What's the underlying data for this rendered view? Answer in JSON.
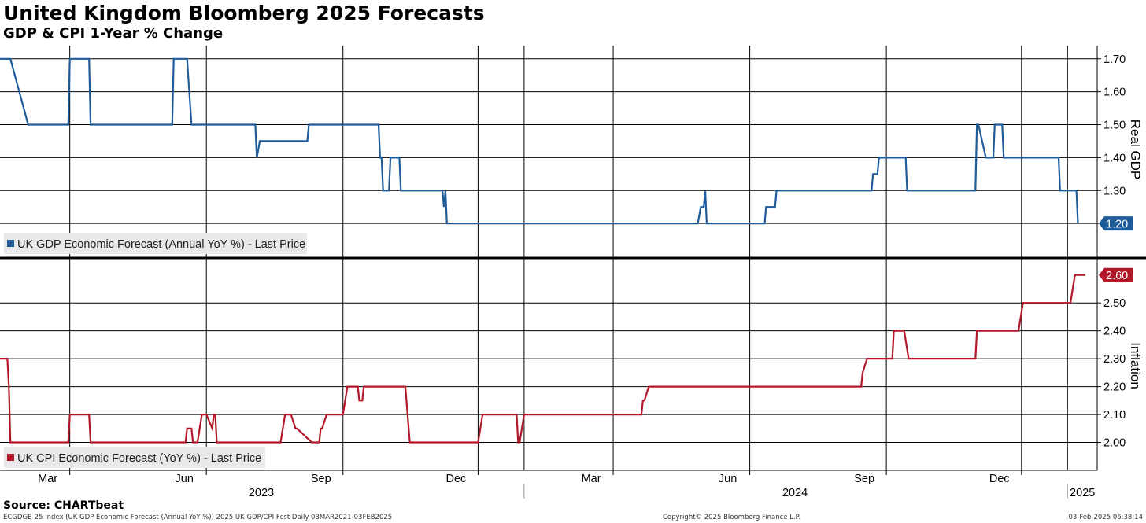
{
  "header": {
    "title": "United Kingdom Bloomberg 2025 Forecasts",
    "subtitle": "GDP & CPI 1-Year % Change"
  },
  "footer": {
    "source": "Source: CHARTbeat",
    "left_text": "ECGDGB 25 Index (UK GDP Economic Forecast (Annual YoY %)) 2025 UK GDP/CPI Fcst  Daily 03MAR2021-03FEB2025",
    "mid_text": "Copyright© 2025 Bloomberg Finance L.P.",
    "right_text": "03-Feb-2025 06:38:14"
  },
  "colors": {
    "gdp": "#1f5b98",
    "cpi": "#b3172a",
    "grid": "#000000"
  },
  "chart_data": [
    {
      "type": "line",
      "panel": "top",
      "ylabel": "Real GDP",
      "ylim": [
        1.1,
        1.74
      ],
      "yticks": [
        "1.70",
        "1.60",
        "1.50",
        "1.40",
        "1.30",
        "1.20"
      ],
      "grid": true,
      "legend": "bottom-left",
      "series": [
        {
          "name": "UK GDP Economic Forecast (Annual YoY %) - Last Price",
          "color": "#1f5b98",
          "last_value_label": "1.20",
          "x": [
            "2023-01-13",
            "2023-01-20",
            "2023-02-01",
            "2023-02-28",
            "2023-03-01",
            "2023-03-14",
            "2023-03-15",
            "2023-05-09",
            "2023-05-10",
            "2023-05-19",
            "2023-05-22",
            "2023-07-03",
            "2023-07-04",
            "2023-07-05",
            "2023-07-07",
            "2023-08-08",
            "2023-08-09",
            "2023-09-25",
            "2023-09-26",
            "2023-09-27",
            "2023-09-28",
            "2023-09-29",
            "2023-10-02",
            "2023-10-03",
            "2023-10-04",
            "2023-10-09",
            "2023-10-10",
            "2023-11-06",
            "2023-11-07",
            "2023-11-08",
            "2023-11-09",
            "2023-11-10",
            "2024-04-27",
            "2024-04-29",
            "2024-04-30",
            "2024-05-01",
            "2024-05-02",
            "2024-05-03",
            "2024-06-11",
            "2024-06-12",
            "2024-06-13",
            "2024-06-18",
            "2024-06-19",
            "2024-08-22",
            "2024-08-23",
            "2024-08-26",
            "2024-08-27",
            "2024-09-14",
            "2024-09-15",
            "2024-10-31",
            "2024-11-01",
            "2024-11-02",
            "2024-11-07",
            "2024-11-08",
            "2024-11-12",
            "2024-11-13",
            "2024-11-14",
            "2024-11-18",
            "2024-11-19",
            "2024-12-26",
            "2024-12-27",
            "2025-01-06",
            "2025-01-07",
            "2025-01-08"
          ],
          "y": [
            1.7,
            1.7,
            1.5,
            1.5,
            1.7,
            1.7,
            1.5,
            1.5,
            1.7,
            1.7,
            1.5,
            1.5,
            1.5,
            1.4,
            1.45,
            1.45,
            1.5,
            1.5,
            1.4,
            1.4,
            1.3,
            1.3,
            1.3,
            1.4,
            1.4,
            1.4,
            1.3,
            1.3,
            1.3,
            1.25,
            1.3,
            1.2,
            1.2,
            1.25,
            1.25,
            1.25,
            1.3,
            1.2,
            1.2,
            1.25,
            1.25,
            1.25,
            1.3,
            1.3,
            1.35,
            1.35,
            1.4,
            1.4,
            1.3,
            1.3,
            1.5,
            1.5,
            1.4,
            1.4,
            1.4,
            1.5,
            1.5,
            1.5,
            1.4,
            1.4,
            1.3,
            1.3,
            1.3,
            1.2
          ]
        }
      ]
    },
    {
      "type": "line",
      "panel": "bottom",
      "ylabel": "Inflation",
      "ylim": [
        1.9,
        2.65
      ],
      "yticks": [
        "2.50",
        "2.40",
        "2.30",
        "2.20",
        "2.10",
        "2.00"
      ],
      "grid": true,
      "legend": "bottom-left",
      "series": [
        {
          "name": "UK CPI Economic Forecast (YoY %) - Last Price",
          "color": "#b3172a",
          "last_value_label": "2.60",
          "x": [
            "2023-01-13",
            "2023-01-18",
            "2023-01-19",
            "2023-01-20",
            "2023-02-28",
            "2023-03-01",
            "2023-03-14",
            "2023-03-15",
            "2023-05-18",
            "2023-05-19",
            "2023-05-22",
            "2023-05-23",
            "2023-05-26",
            "2023-05-29",
            "2023-06-01",
            "2023-06-05",
            "2023-06-06",
            "2023-06-07",
            "2023-06-08",
            "2023-06-09",
            "2023-07-21",
            "2023-07-24",
            "2023-07-28",
            "2023-07-31",
            "2023-08-01",
            "2023-08-11",
            "2023-08-16",
            "2023-08-17",
            "2023-08-18",
            "2023-08-21",
            "2023-09-01",
            "2023-09-04",
            "2023-09-05",
            "2023-09-11",
            "2023-09-12",
            "2023-09-13",
            "2023-09-14",
            "2023-09-15",
            "2023-09-18",
            "2023-10-13",
            "2023-10-16",
            "2023-12-01",
            "2023-12-04",
            "2023-12-27",
            "2023-12-28",
            "2023-12-29",
            "2024-01-01",
            "2024-03-20",
            "2024-03-21",
            "2024-03-22",
            "2024-03-25",
            "2024-03-26",
            "2024-08-15",
            "2024-08-16",
            "2024-08-19",
            "2024-09-05",
            "2024-09-06",
            "2024-09-13",
            "2024-09-16",
            "2024-10-31",
            "2024-11-01",
            "2024-11-29",
            "2024-12-02",
            "2025-01-03",
            "2025-01-06",
            "2025-01-13"
          ],
          "y": [
            2.3,
            2.3,
            2.2,
            2.0,
            2.0,
            2.1,
            2.1,
            2.0,
            2.0,
            2.05,
            2.05,
            2.0,
            2.0,
            2.1,
            2.1,
            2.05,
            2.1,
            2.1,
            2.0,
            2.0,
            2.0,
            2.1,
            2.1,
            2.05,
            2.05,
            2.0,
            2.0,
            2.05,
            2.05,
            2.1,
            2.1,
            2.2,
            2.2,
            2.2,
            2.15,
            2.15,
            2.15,
            2.2,
            2.2,
            2.2,
            2.0,
            2.0,
            2.1,
            2.1,
            2.0,
            2.0,
            2.1,
            2.1,
            2.15,
            2.15,
            2.2,
            2.2,
            2.2,
            2.25,
            2.3,
            2.3,
            2.4,
            2.4,
            2.3,
            2.3,
            2.4,
            2.4,
            2.5,
            2.5,
            2.6,
            2.6
          ]
        }
      ]
    }
  ],
  "xaxis": {
    "month_labels": [
      {
        "label": "Mar",
        "date": "2023-03-01"
      },
      {
        "label": "Jun",
        "date": "2023-06-01"
      },
      {
        "label": "Sep",
        "date": "2023-09-01"
      },
      {
        "label": "Dec",
        "date": "2023-12-01"
      },
      {
        "label": "Mar",
        "date": "2024-03-01"
      },
      {
        "label": "Jun",
        "date": "2024-06-01"
      },
      {
        "label": "Sep",
        "date": "2024-09-01"
      },
      {
        "label": "Dec",
        "date": "2024-12-01"
      }
    ],
    "year_labels": [
      {
        "label": "2023",
        "from": "2023-01-01",
        "to": "2023-12-31"
      },
      {
        "label": "2024",
        "from": "2024-01-01",
        "to": "2024-12-31"
      },
      {
        "label": "2025",
        "from": "2025-01-01",
        "to": "2025-01-31"
      }
    ]
  }
}
